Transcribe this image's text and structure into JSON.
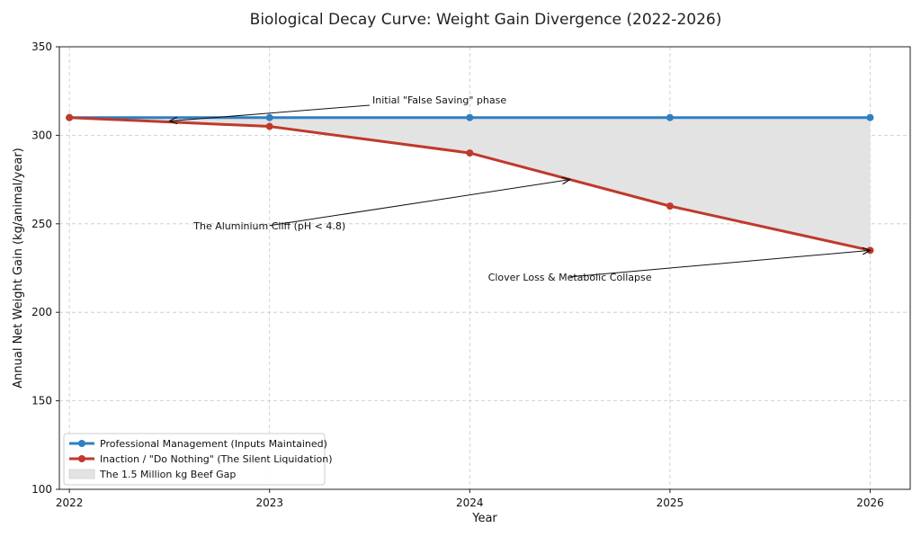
{
  "chart_data": {
    "type": "line",
    "title": "Biological Decay Curve: Weight Gain Divergence (2022-2026)",
    "xlabel": "Year",
    "ylabel": "Annual Net Weight Gain (kg/animal/year)",
    "x": [
      2022,
      2023,
      2024,
      2025,
      2026
    ],
    "xlim": [
      2021.95,
      2026.2
    ],
    "ylim": [
      100,
      350
    ],
    "yticks": [
      100,
      150,
      200,
      250,
      300,
      350
    ],
    "grid": true,
    "legend_position": "lower-left",
    "series": [
      {
        "name": "Professional Management (Inputs Maintained)",
        "values": [
          310,
          310,
          310,
          310,
          310
        ],
        "color": "#2f7fc1"
      },
      {
        "name": "Inaction / \"Do Nothing\" (The Silent Liquidation)",
        "values": [
          310,
          305,
          290,
          260,
          235
        ],
        "color": "#c0392b"
      }
    ],
    "fill": {
      "name": "The 1.5 Million kg Beef Gap",
      "color": "#e3e3e3"
    },
    "annotations": [
      {
        "text": "Initial \"False Saving\" phase",
        "text_x": 2023.5,
        "text_y": 317,
        "arrow_x": 2022.5,
        "arrow_y": 308
      },
      {
        "text": "The Aluminium Cliff (pH < 4.8)",
        "text_x": 2023.0,
        "text_y": 249,
        "arrow_x": 2024.5,
        "arrow_y": 275
      },
      {
        "text": "Clover Loss & Metabolic Collapse",
        "text_x": 2024.5,
        "text_y": 220,
        "arrow_x": 2026,
        "arrow_y": 235
      }
    ]
  }
}
